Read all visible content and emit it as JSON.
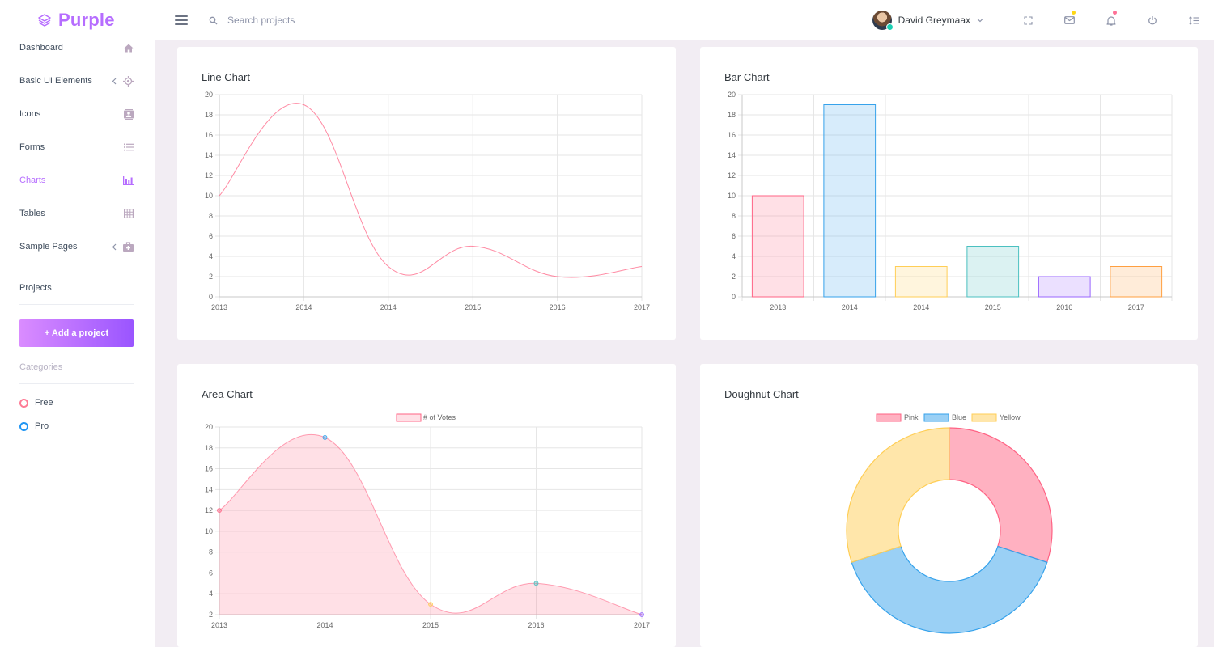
{
  "brand": {
    "name": "Purple"
  },
  "search": {
    "placeholder": "Search projects"
  },
  "user": {
    "name": "David Greymaax"
  },
  "sidebar": {
    "items": [
      {
        "label": "Dashboard",
        "icon": "home-icon"
      },
      {
        "label": "Basic UI Elements",
        "icon": "crosshairs-gps-icon"
      },
      {
        "label": "Icons",
        "icon": "contacts-icon"
      },
      {
        "label": "Forms",
        "icon": "format-list-bulleted-icon"
      },
      {
        "label": "Charts",
        "icon": "chart-bar-icon"
      },
      {
        "label": "Tables",
        "icon": "table-large-icon"
      },
      {
        "label": "Sample Pages",
        "icon": "medical-bag-icon"
      }
    ],
    "projects_title": "Projects",
    "add_project_label": "+ Add a project",
    "categories_title": "Categories",
    "categories": [
      {
        "label": "Free",
        "color": "#fe7c96"
      },
      {
        "label": "Pro",
        "color": "#2196f3"
      }
    ]
  },
  "cards": {
    "line_title": "Line Chart",
    "bar_title": "Bar Chart",
    "area_title": "Area Chart",
    "doughnut_title": "Doughnut Chart"
  },
  "colors": {
    "accent": "#b66dff",
    "pink": "#ff6384",
    "blue": "#36a2eb",
    "yellow": "#ffce56",
    "teal": "#4bc0c0",
    "purple": "#9966ff",
    "orange": "#ff9f40"
  },
  "chart_data": [
    {
      "type": "line",
      "title": "Line Chart",
      "categories": [
        "2013",
        "2014",
        "2014",
        "2015",
        "2016",
        "2017"
      ],
      "values": [
        10,
        19,
        3,
        5,
        2,
        3
      ],
      "ylim": [
        0,
        20
      ],
      "yticks": [
        0,
        2,
        4,
        6,
        8,
        10,
        12,
        14,
        16,
        18,
        20
      ],
      "grid": true
    },
    {
      "type": "bar",
      "title": "Bar Chart",
      "categories": [
        "2013",
        "2014",
        "2014",
        "2015",
        "2016",
        "2017"
      ],
      "values": [
        10,
        19,
        3,
        5,
        2,
        3
      ],
      "bar_colors": [
        "#ff6384",
        "#36a2eb",
        "#ffce56",
        "#4bc0c0",
        "#9966ff",
        "#ff9f40"
      ],
      "ylim": [
        0,
        20
      ],
      "yticks": [
        0,
        2,
        4,
        6,
        8,
        10,
        12,
        14,
        16,
        18,
        20
      ],
      "grid": true
    },
    {
      "type": "area",
      "title": "Area Chart",
      "legend": [
        "# of Votes"
      ],
      "categories": [
        "2013",
        "2014",
        "2015",
        "2016",
        "2017"
      ],
      "values": [
        12,
        19,
        3,
        5,
        2
      ],
      "point_colors": [
        "#ff6384",
        "#36a2eb",
        "#ffce56",
        "#4bc0c0",
        "#9966ff"
      ],
      "ylim": [
        2,
        20
      ],
      "yticks": [
        2,
        4,
        6,
        8,
        10,
        12,
        14,
        16,
        18,
        20
      ],
      "grid": true
    },
    {
      "type": "pie",
      "title": "Doughnut Chart",
      "labels": [
        "Pink",
        "Blue",
        "Yellow"
      ],
      "values": [
        30,
        40,
        30
      ],
      "colors": [
        "#ff6384",
        "#36a2eb",
        "#ffce56"
      ],
      "legend_position": "top"
    }
  ]
}
